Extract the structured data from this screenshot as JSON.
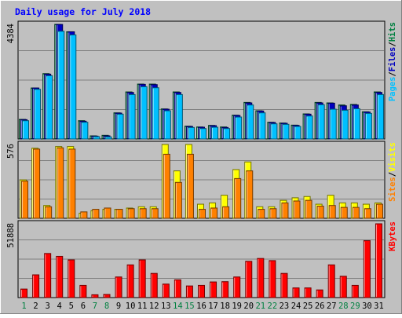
{
  "chart_data": {
    "type": "bar",
    "title": "Daily usage for July 2018",
    "days": [
      "1",
      "2",
      "3",
      "4",
      "5",
      "6",
      "7",
      "8",
      "9",
      "10",
      "11",
      "12",
      "13",
      "14",
      "15",
      "16",
      "17",
      "18",
      "19",
      "20",
      "21",
      "22",
      "23",
      "24",
      "25",
      "26",
      "27",
      "28",
      "29",
      "30",
      "31"
    ],
    "weekend_days": [
      "1",
      "7",
      "8",
      "14",
      "15",
      "21",
      "22",
      "28",
      "29"
    ],
    "panels": [
      {
        "id": "hits-files-pages",
        "max_label": "4384",
        "ymax": 4384,
        "right_labels": [
          {
            "text": "Pages",
            "color": "#00c0ff"
          },
          {
            "text": "/",
            "color": "#000000"
          },
          {
            "text": "Files",
            "color": "#0000c0"
          },
          {
            "text": "/",
            "color": "#000000"
          },
          {
            "text": "Hits",
            "color": "#008040"
          }
        ],
        "series": [
          {
            "name": "Hits",
            "color": "#008040",
            "values": [
              750,
              1950,
              2500,
              4384,
              4100,
              700,
              120,
              140,
              1000,
              1800,
              2100,
              2100,
              1150,
              1800,
              490,
              460,
              520,
              460,
              910,
              1400,
              1080,
              640,
              610,
              530,
              960,
              1400,
              1380,
              1300,
              1320,
              1040,
              1800
            ]
          },
          {
            "name": "Files",
            "color": "#0000c0",
            "values": [
              740,
              1950,
              2480,
              4380,
              4100,
              680,
              110,
              120,
              990,
              1780,
              2090,
              2080,
              1140,
              1780,
              480,
              450,
              510,
              440,
              900,
              1380,
              1070,
              630,
              600,
              520,
              950,
              1380,
              1370,
              1270,
              1300,
              1030,
              1780
            ]
          },
          {
            "name": "Pages",
            "color": "#00c0ff",
            "values": [
              700,
              1900,
              2420,
              4120,
              3980,
              640,
              90,
              80,
              950,
              1700,
              2000,
              1960,
              1080,
              1700,
              440,
              400,
              450,
              400,
              840,
              1300,
              1000,
              580,
              560,
              480,
              880,
              1310,
              1140,
              1100,
              1160,
              980,
              1700
            ]
          }
        ]
      },
      {
        "id": "visits-sites",
        "max_label": "576",
        "ymax": 576,
        "right_labels": [
          {
            "text": "Sites",
            "color": "#ff8000"
          },
          {
            "text": "/",
            "color": "#000000"
          },
          {
            "text": "Visits",
            "color": "#ffff00"
          }
        ],
        "series": [
          {
            "name": "Visits",
            "color": "#ffff00",
            "values": [
              300,
              547,
              100,
              560,
              560,
              40,
              60,
              70,
              70,
              80,
              90,
              90,
              576,
              370,
              576,
              110,
              120,
              180,
              380,
              440,
              90,
              90,
              140,
              160,
              170,
              110,
              180,
              120,
              120,
              110,
              120
            ]
          },
          {
            "name": "Sites",
            "color": "#ff8000",
            "values": [
              290,
              540,
              90,
              550,
              540,
              50,
              70,
              80,
              70,
              75,
              75,
              75,
              500,
              280,
              500,
              70,
              80,
              90,
              310,
              370,
              70,
              75,
              120,
              135,
              140,
              95,
              100,
              85,
              85,
              75,
              110
            ]
          }
        ]
      },
      {
        "id": "kbytes",
        "max_label": "51888",
        "ymax": 51888,
        "right_labels": [
          {
            "text": "KBytes",
            "color": "#ff0000"
          }
        ],
        "series": [
          {
            "name": "KBytes",
            "color": "#ff0000",
            "values": [
              6000,
              16000,
              31000,
              29000,
              26500,
              8600,
              2000,
              2200,
              14500,
              23000,
              26500,
              17000,
              9500,
              12500,
              8200,
              8600,
              11000,
              11200,
              14500,
              25500,
              27500,
              26000,
              17000,
              6800,
              6800,
              5400,
              23000,
              15000,
              8600,
              40000,
              51888
            ]
          }
        ]
      }
    ]
  }
}
